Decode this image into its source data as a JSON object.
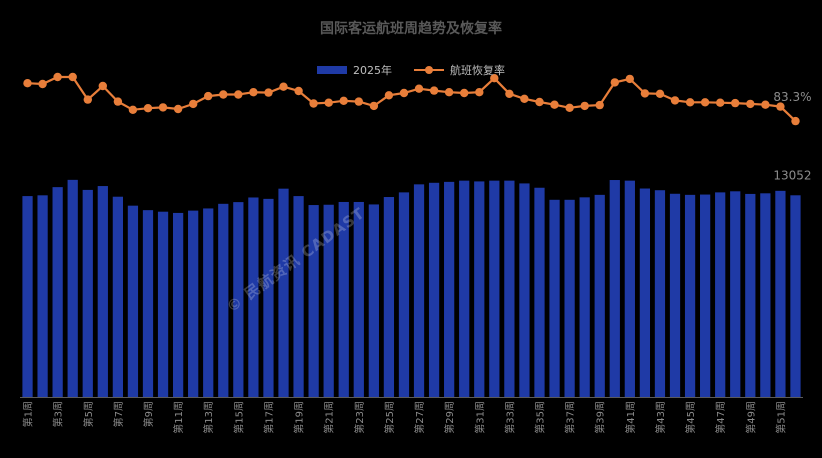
{
  "chart_data": {
    "type": "bar+line",
    "title": "国际客运航班周趋势及恢复率",
    "legend_position": "top",
    "colors": {
      "bar": "#1f3aa6",
      "line": "#e87e3a",
      "axis": "#5b5b5b"
    },
    "categories": [
      "第1周",
      "第2周",
      "第3周",
      "第4周",
      "第5周",
      "第6周",
      "第7周",
      "第8周",
      "第9周",
      "第10周",
      "第11周",
      "第12周",
      "第13周",
      "第14周",
      "第15周",
      "第16周",
      "第17周",
      "第18周",
      "第19周",
      "第20周",
      "第21周",
      "第22周",
      "第23周",
      "第24周",
      "第25周",
      "第26周",
      "第27周",
      "第28周",
      "第29周",
      "第30周",
      "第31周",
      "第32周",
      "第33周",
      "第34周",
      "第35周",
      "第36周",
      "第37周",
      "第38周",
      "第39周",
      "第40周",
      "第41周",
      "第42周",
      "第43周",
      "第44周",
      "第45周",
      "第46周",
      "第47周",
      "第48周",
      "第49周",
      "第50周",
      "第51周",
      "第52周"
    ],
    "x_tick_labels": [
      "第1周",
      "第3周",
      "第5周",
      "第7周",
      "第9周",
      "第11周",
      "第13周",
      "第15周",
      "第17周",
      "第19周",
      "第21周",
      "第23周",
      "第25周",
      "第27周",
      "第29周",
      "第31周",
      "第33周",
      "第35周",
      "第37周",
      "第39周",
      "第41周",
      "第43周",
      "第45周",
      "第47周",
      "第49周",
      "第51周"
    ],
    "series": [
      {
        "name": "2025年",
        "type": "bar",
        "values": [
          13000,
          13050,
          13580,
          14050,
          13400,
          13650,
          12960,
          12380,
          12090,
          11990,
          11910,
          12060,
          12200,
          12500,
          12610,
          12910,
          12820,
          13480,
          13000,
          12420,
          12440,
          12620,
          12620,
          12460,
          12940,
          13240,
          13760,
          13860,
          13920,
          14000,
          13950,
          14000,
          14000,
          13820,
          13540,
          12760,
          12760,
          12920,
          13080,
          14040,
          14000,
          13490,
          13380,
          13150,
          13080,
          13100,
          13240,
          13310,
          13140,
          13180,
          13340,
          13052
        ],
        "last_value_label": "13052"
      },
      {
        "name": "航班恢复率",
        "type": "line",
        "unit": "%",
        "values": [
          93.0,
          92.8,
          94.6,
          94.6,
          88.8,
          92.3,
          88.3,
          86.2,
          86.6,
          86.8,
          86.4,
          87.7,
          89.7,
          90.1,
          90.1,
          90.7,
          90.6,
          92.1,
          91.0,
          87.8,
          88.0,
          88.5,
          88.3,
          87.2,
          89.9,
          90.5,
          91.6,
          91.1,
          90.7,
          90.5,
          90.7,
          94.3,
          90.3,
          89.0,
          88.2,
          87.5,
          86.7,
          87.2,
          87.4,
          93.2,
          94.1,
          90.4,
          90.3,
          88.6,
          88.1,
          88.1,
          88.0,
          87.9,
          87.7,
          87.5,
          87.0,
          83.3
        ],
        "last_value_label": "83.3%"
      }
    ],
    "ylim_bar": [
      0,
      22000
    ],
    "ylim_line": [
      40,
      100
    ],
    "grid": false
  },
  "watermark": "© 民航资讯 CADAST"
}
